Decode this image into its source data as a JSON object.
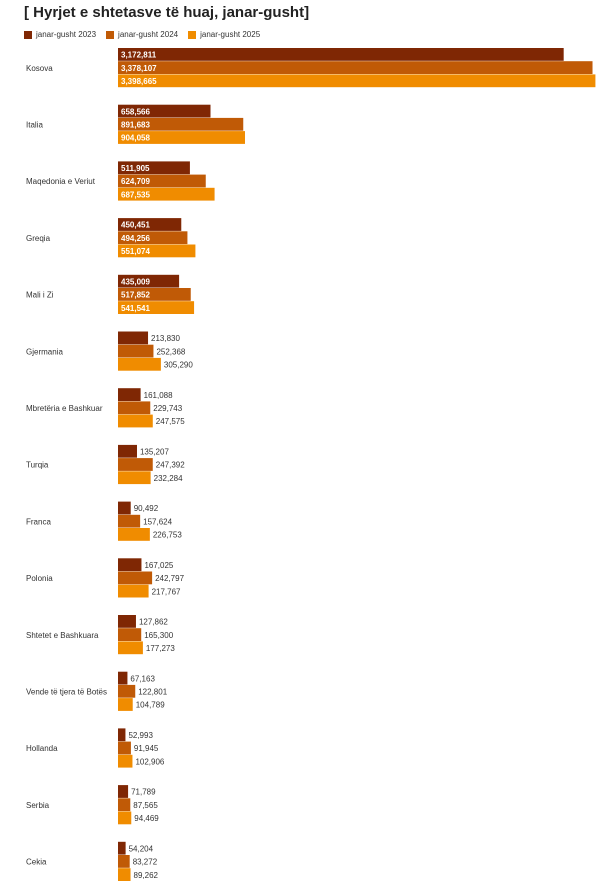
{
  "chart_data": {
    "type": "bar",
    "orientation": "horizontal",
    "title": "[ Hyrjet e shtetasve të huaj, janar-gusht]",
    "categories": [
      "Kosova",
      "Italia",
      "Maqedonia e Veriut",
      "Greqia",
      "Mali i Zi",
      "Gjermania",
      "Mbretëria e Bashkuar",
      "Turqia",
      "Franca",
      "Polonia",
      "Shtetet e Bashkuara",
      "Vende të tjera të Botës",
      "Hollanda",
      "Serbia",
      "Cekia"
    ],
    "series": [
      {
        "name": "janar-gusht 2023",
        "color": "#7f2704",
        "values": [
          3172811,
          658566,
          511905,
          450451,
          435009,
          213830,
          161088,
          135207,
          90492,
          167025,
          127862,
          67163,
          52993,
          71789,
          54204
        ],
        "labels": [
          "3,172,811",
          "658,566",
          "511,905",
          "450,451",
          "435,009",
          "213,830",
          "161,088",
          "135,207",
          "90,492",
          "167,025",
          "127,862",
          "67,163",
          "52,993",
          "71,789",
          "54,204"
        ]
      },
      {
        "name": "janar-gusht 2024",
        "color": "#c05a06",
        "values": [
          3378107,
          891683,
          624709,
          494256,
          517852,
          252368,
          229743,
          247392,
          157624,
          242797,
          165300,
          122801,
          91945,
          87565,
          83272
        ],
        "labels": [
          "3,378,107",
          "891,683",
          "624,709",
          "494,256",
          "517,852",
          "252,368",
          "229,743",
          "247,392",
          "157,624",
          "242,797",
          "165,300",
          "122,801",
          "91,945",
          "87,565",
          "83,272"
        ]
      },
      {
        "name": "janar-gusht 2025",
        "color": "#f08c00",
        "values": [
          3398665,
          904058,
          687535,
          551074,
          541541,
          305290,
          247575,
          232284,
          226753,
          217767,
          177273,
          104789,
          102906,
          94469,
          89262
        ],
        "labels": [
          "3,398,665",
          "904,058",
          "687,535",
          "551,074",
          "541,541",
          "305,290",
          "247,575",
          "232,284",
          "226,753",
          "217,767",
          "177,273",
          "104,789",
          "102,906",
          "94,469",
          "89,262"
        ]
      }
    ],
    "xlim": [
      0,
      3410000
    ],
    "grid": false,
    "legend": "top-left"
  }
}
